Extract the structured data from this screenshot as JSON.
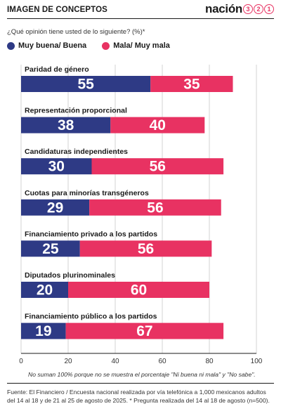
{
  "header": {
    "section_title": "IMAGEN DE CONCEPTOS",
    "brand_word": "nación",
    "brand_digits": [
      "3",
      "2",
      "1"
    ]
  },
  "question": "¿Qué opinión tiene usted de lo siguiente?   (%)*",
  "legend": {
    "positive": "Muy buena/ Buena",
    "negative": "Mala/ Muy mala"
  },
  "colors": {
    "positive": "#2e3a85",
    "negative": "#e83262",
    "brand_accent": "#e83262"
  },
  "chart_data": {
    "type": "bar",
    "orientation": "horizontal",
    "stacked": true,
    "categories": [
      "Paridad de género",
      "Representación proporcional",
      "Candidaturas independientes",
      "Cuotas para minorías transgéneros",
      "Financiamiento privado a los partidos",
      "Diputados plurinominales",
      "Financiamiento público a los partidos"
    ],
    "series": [
      {
        "name": "Muy buena/ Buena",
        "values": [
          55,
          38,
          30,
          29,
          25,
          20,
          19
        ]
      },
      {
        "name": "Mala/ Muy mala",
        "values": [
          35,
          40,
          56,
          56,
          56,
          60,
          67
        ]
      }
    ],
    "xlim": [
      0,
      100
    ],
    "xticks": [
      0,
      20,
      40,
      60,
      80,
      100
    ],
    "grid": true,
    "legend_position": "top-left"
  },
  "note": "No suman 100% porque no se muestra el porcentaje \"Ni buena ni mala\" y \"No sabe\".",
  "source": "Fuente: El Financiero / Encuesta nacional realizada por vía telefónica a 1,000 mexicanos adultos del 14 al 18 y de 21 al 25 de agosto de 2025. * Pregunta realizada del 14 al 18 de agosto (n=500)."
}
